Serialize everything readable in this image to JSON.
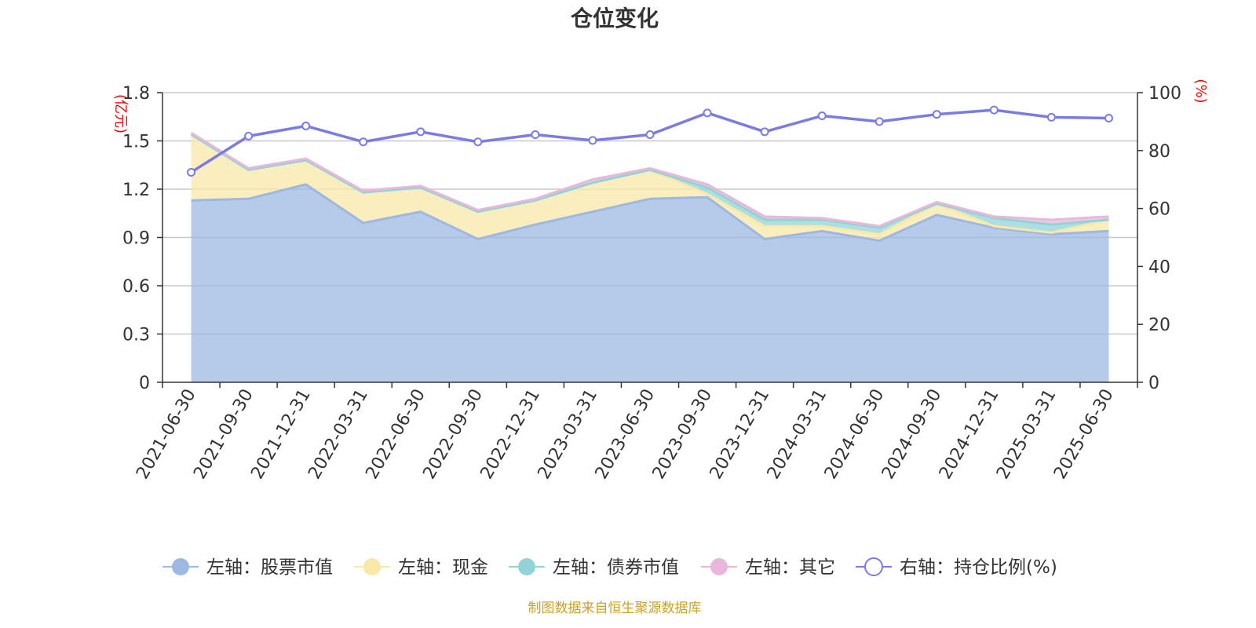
{
  "colors": {
    "stock": "#9db8e3",
    "cash": "#f9e8a8",
    "bond": "#91d4d8",
    "other": "#e8b7da",
    "ratio": "#7b7be8",
    "unit": "#ff0000",
    "source": "#c9a227",
    "grid": "#c8c8c8",
    "axis": "#333333"
  },
  "chart_data": {
    "type": "area",
    "title": "仓位变化",
    "left_axis": {
      "unit": "(亿元)",
      "ylim": [
        0,
        1.8
      ],
      "ticks": [
        "0",
        "0.3",
        "0.6",
        "0.9",
        "1.2",
        "1.5",
        "1.8"
      ]
    },
    "right_axis": {
      "unit": "(%)",
      "ylim": [
        0,
        100
      ],
      "ticks": [
        "0",
        "20",
        "40",
        "60",
        "80",
        "100"
      ]
    },
    "categories": [
      "2021-06-30",
      "2021-09-30",
      "2021-12-31",
      "2022-03-31",
      "2022-06-30",
      "2022-09-30",
      "2022-12-31",
      "2023-03-31",
      "2023-06-30",
      "2023-09-30",
      "2023-12-31",
      "2024-03-31",
      "2024-06-30",
      "2024-09-30",
      "2024-12-31",
      "2025-03-31",
      "2025-06-30"
    ],
    "series": [
      {
        "name": "左轴：股票市值",
        "type": "area",
        "axis": "left",
        "stack": true,
        "values": [
          1.13,
          1.14,
          1.23,
          0.99,
          1.06,
          0.89,
          0.98,
          1.06,
          1.14,
          1.15,
          0.89,
          0.94,
          0.88,
          1.04,
          0.96,
          0.92,
          0.94
        ]
      },
      {
        "name": "左轴：现金",
        "type": "area",
        "axis": "left",
        "stack": true,
        "values": [
          0.41,
          0.18,
          0.15,
          0.19,
          0.15,
          0.17,
          0.15,
          0.18,
          0.18,
          0.02,
          0.08,
          0.03,
          0.04,
          0.07,
          0.01,
          0.01,
          0.07
        ]
      },
      {
        "name": "左轴：债券市值",
        "type": "area",
        "axis": "left",
        "stack": true,
        "values": [
          0,
          0,
          0,
          0,
          0,
          0,
          0,
          0,
          0,
          0.04,
          0.04,
          0.04,
          0.04,
          0,
          0.05,
          0.05,
          0
        ]
      },
      {
        "name": "左轴：其它",
        "type": "area",
        "axis": "left",
        "stack": true,
        "values": [
          0.01,
          0.01,
          0.01,
          0.01,
          0.01,
          0.01,
          0.01,
          0.02,
          0.01,
          0.02,
          0.02,
          0.01,
          0.01,
          0.01,
          0.01,
          0.03,
          0.02
        ]
      },
      {
        "name": "右轴：持仓比例(%)",
        "type": "line",
        "axis": "right",
        "values": [
          72.5,
          85,
          88.5,
          83,
          86.5,
          83,
          85.5,
          83.5,
          85.5,
          93,
          86.5,
          92,
          90,
          92.5,
          94,
          91.5,
          91.2
        ]
      }
    ],
    "legend_position": "bottom-center",
    "grid": true,
    "source": "制图数据来自恒生聚源数据库"
  }
}
